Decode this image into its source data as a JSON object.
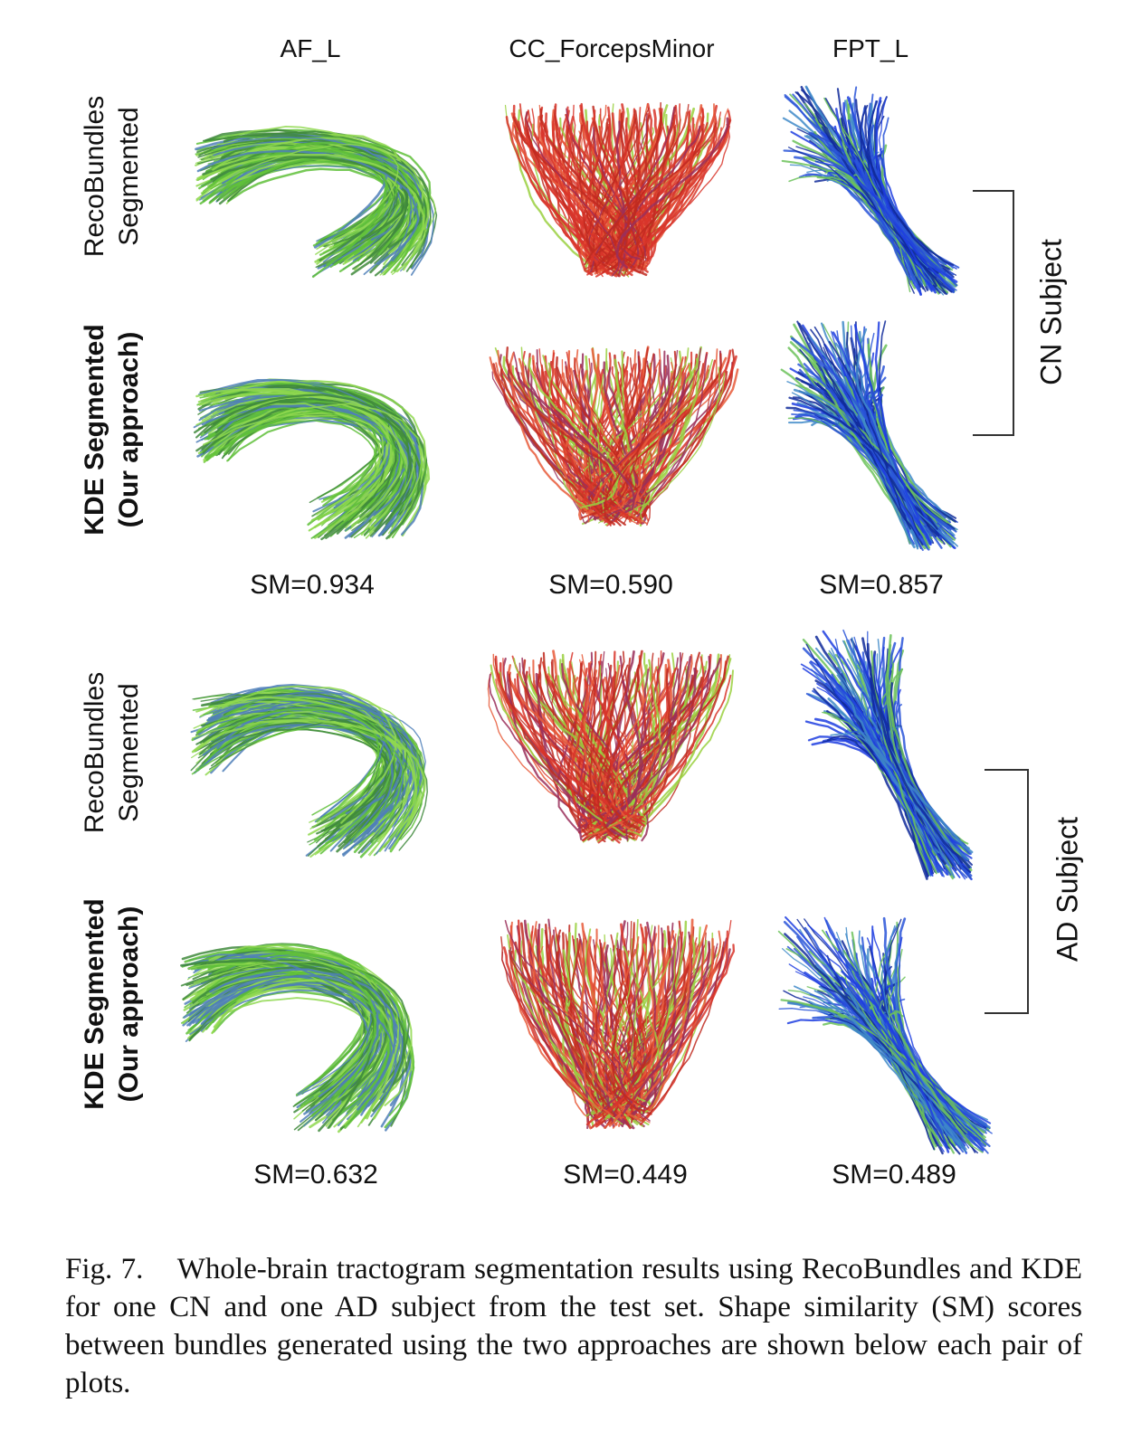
{
  "figure": {
    "column_headers": [
      "AF_L",
      "CC_ForcepsMinor",
      "FPT_L"
    ],
    "row_labels": {
      "recobundles": [
        "RecoBundles",
        "Segmented"
      ],
      "kde": [
        "KDE Segmented",
        "(Our approach)"
      ]
    },
    "subjects": [
      "CN Subject",
      "AD Subject"
    ],
    "sm_scores": {
      "cn": [
        "SM=0.934",
        "SM=0.590",
        "SM=0.857"
      ],
      "ad": [
        "SM=0.632",
        "SM=0.449",
        "SM=0.489"
      ]
    },
    "bundle_colors": {
      "AF_L": [
        "#5fbf3a",
        "#8fd84f",
        "#3f8a3c",
        "#4f7fb8"
      ],
      "CC_ForcepsMinor": [
        "#d8352a",
        "#c02a20",
        "#e85a3a",
        "#9a2f5a",
        "#9ad040"
      ],
      "FPT_L": [
        "#1e3ee0",
        "#2a55d8",
        "#3f8ac8",
        "#6cc25a",
        "#102a9a"
      ]
    }
  },
  "caption": {
    "label": "Fig. 7.",
    "text": "Whole-brain tractogram segmentation results using RecoBundles and KDE for one CN and one AD subject from the test set. Shape similarity (SM) scores between bundles generated using the two approaches are shown below each pair of plots."
  }
}
